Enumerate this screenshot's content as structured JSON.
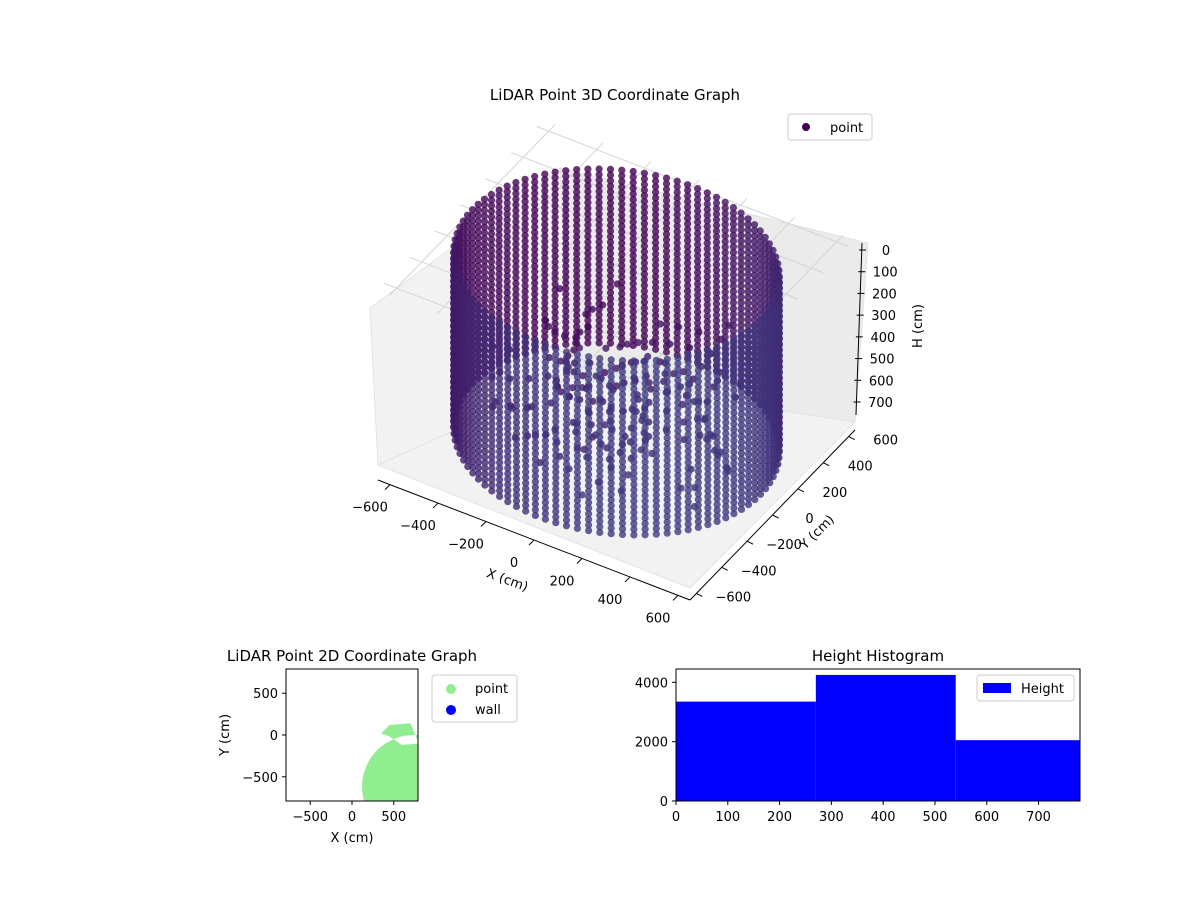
{
  "chart_data": [
    {
      "type": "scatter",
      "projection": "3d",
      "title": "LiDAR Point 3D Coordinate Graph",
      "xlabel": "X (cm)",
      "ylabel": "Y (cm)",
      "zlabel": "H (cm)",
      "x_ticks": [
        "−600",
        "−400",
        "−200",
        "0",
        "200",
        "400",
        "600"
      ],
      "y_ticks": [
        "−600",
        "−400",
        "−200",
        "0",
        "200",
        "400",
        "600"
      ],
      "z_ticks": [
        "0",
        "100",
        "200",
        "300",
        "400",
        "500",
        "600",
        "700"
      ],
      "xlim": [
        -650,
        650
      ],
      "ylim": [
        -650,
        650
      ],
      "zlim": [
        0,
        780
      ],
      "z_inverted": true,
      "series": [
        {
          "name": "point",
          "color": "#440154",
          "colormap": "viridis",
          "shape": "cylindrical wall of points, radius about 600, height 0–780"
        }
      ],
      "legend_position": "top-right",
      "grid": true
    },
    {
      "type": "scatter",
      "title": "LiDAR Point 2D Coordinate Graph",
      "xlabel": "X (cm)",
      "ylabel": "Y (cm)",
      "x_ticks": [
        "−500",
        "0",
        "500"
      ],
      "y_ticks": [
        "500",
        "0",
        "−500"
      ],
      "xlim": [
        -790,
        790
      ],
      "ylim": [
        -790,
        790
      ],
      "series": [
        {
          "name": "point",
          "color": "#90ee90",
          "shape": "filled disc radius about 780 with notch on right side near y=0"
        },
        {
          "name": "wall",
          "color": "#0000ff"
        }
      ],
      "legend_position": "outside right",
      "grid": false
    },
    {
      "type": "bar",
      "histogram": true,
      "title": "Height Histogram",
      "bins": [
        [
          0,
          270
        ],
        [
          270,
          540
        ],
        [
          540,
          780
        ]
      ],
      "values": [
        3350,
        4250,
        2050
      ],
      "x_ticks": [
        "0",
        "100",
        "200",
        "300",
        "400",
        "500",
        "600",
        "700"
      ],
      "y_ticks": [
        "0",
        "2000",
        "4000"
      ],
      "xlim": [
        0,
        780
      ],
      "ylim": [
        0,
        4450
      ],
      "series": [
        {
          "name": "Height",
          "color": "#0000ff"
        }
      ],
      "legend_position": "top-right",
      "grid": false
    }
  ]
}
